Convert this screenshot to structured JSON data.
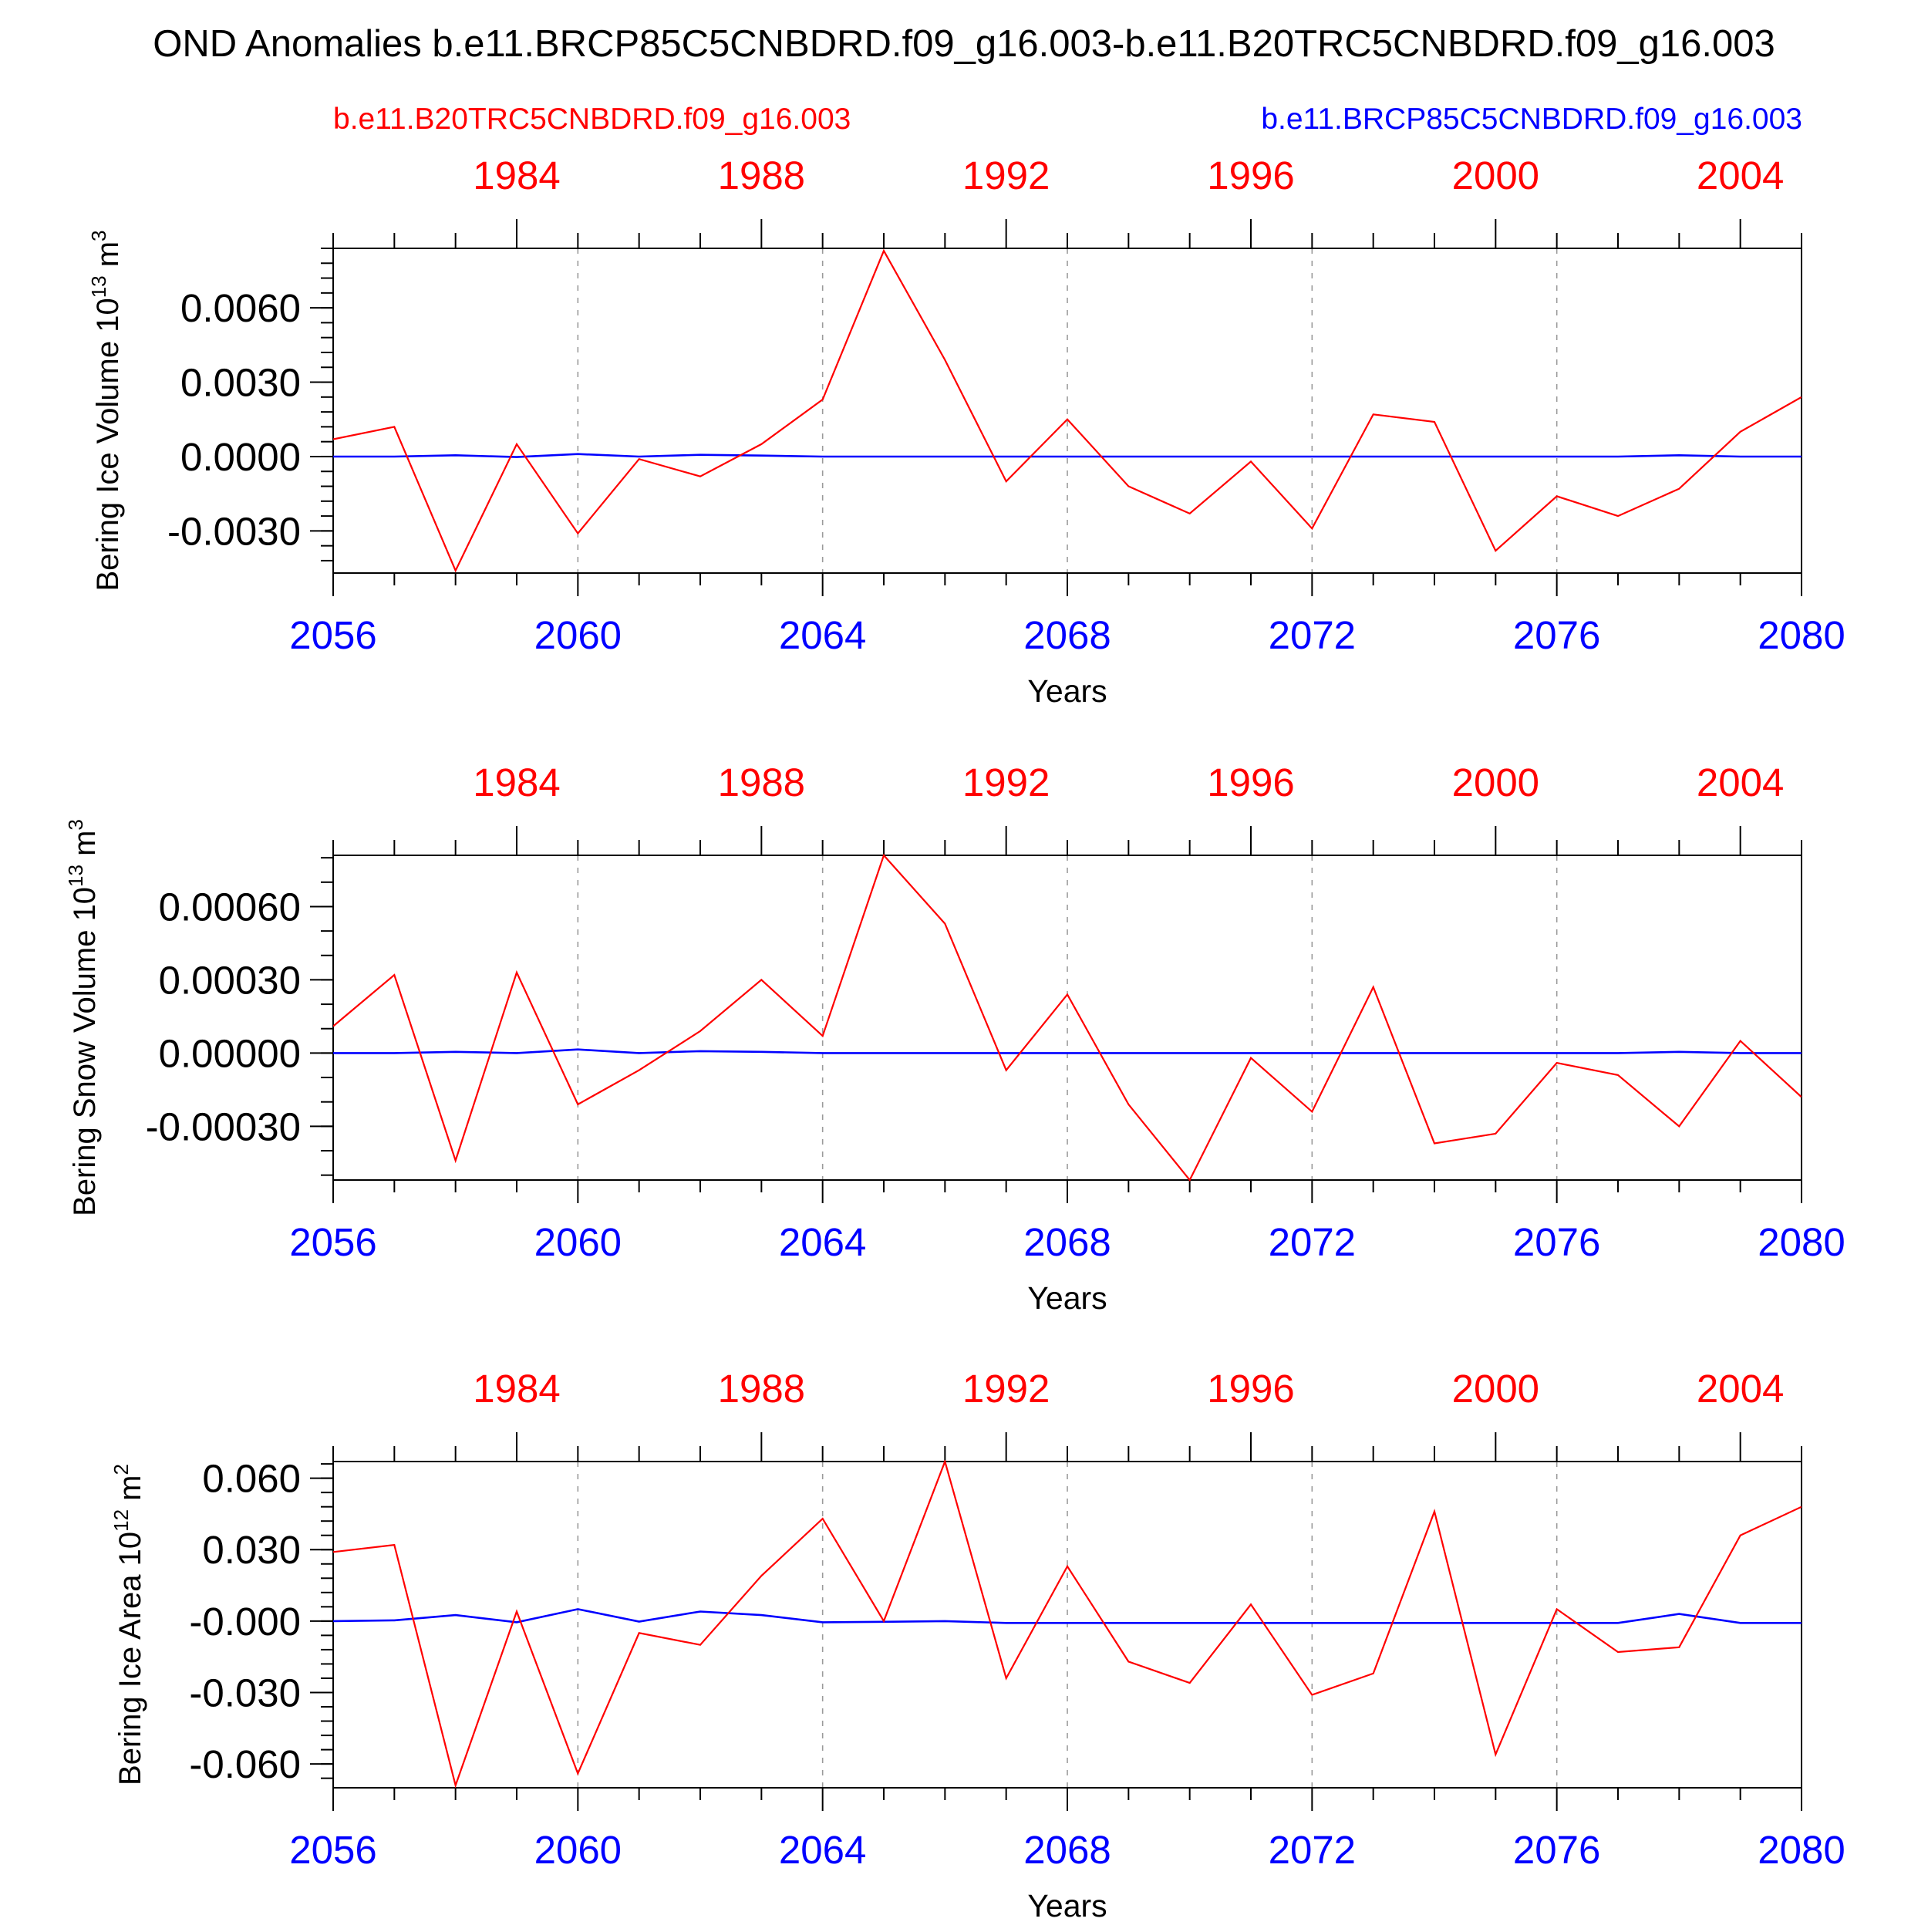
{
  "title": "OND Anomalies b.e11.BRCP85C5CNBDRD.f09_g16.003-b.e11.B20TRC5CNBDRD.f09_g16.003",
  "legend": {
    "red_label": "b.e11.B20TRC5CNBDRD.f09_g16.003",
    "blue_label": "b.e11.BRCP85C5CNBDRD.f09_g16.003"
  },
  "colors": {
    "red": "#ff0000",
    "blue": "#0000ff",
    "axis": "#000000",
    "grid": "#9a9a9a"
  },
  "chart_data": [
    {
      "type": "line",
      "ylabel": "Bering Ice Volume 10",
      "ylabel_exp": "13",
      "ylabel_unit": " m",
      "ylabel_unit_exp": "3",
      "xlabel": "Years",
      "xlim": [
        2056,
        2080
      ],
      "ylim": [
        -0.0047,
        0.0084
      ],
      "yticks": [
        -0.003,
        0.0,
        0.003,
        0.006
      ],
      "ytick_labels": [
        "-0.0030",
        "0.0000",
        "0.0030",
        "0.0060"
      ],
      "yminor_step": 0.0006,
      "top_xlim": [
        1981,
        2005
      ],
      "top_ticks": [
        1984,
        1988,
        1992,
        1996,
        2000,
        2004
      ],
      "bottom_ticks": [
        2056,
        2060,
        2064,
        2068,
        2072,
        2076,
        2080
      ],
      "grid_years": [
        2060,
        2064,
        2068,
        2072,
        2076
      ],
      "x": [
        2056,
        2057,
        2058,
        2059,
        2060,
        2061,
        2062,
        2063,
        2064,
        2065,
        2066,
        2067,
        2068,
        2069,
        2070,
        2071,
        2072,
        2073,
        2074,
        2075,
        2076,
        2077,
        2078,
        2079,
        2080
      ],
      "series": [
        {
          "name": "b.e11.B20TRC5CNBDRD.f09_g16.003",
          "color": "red",
          "values": [
            0.0007,
            0.0012,
            -0.0046,
            0.0005,
            -0.0031,
            -0.0001,
            -0.0008,
            0.0005,
            0.0023,
            0.0083,
            0.0039,
            -0.001,
            0.0015,
            -0.0012,
            -0.0023,
            -0.0002,
            -0.0029,
            0.0017,
            0.0014,
            -0.0038,
            -0.0016,
            -0.0024,
            -0.0013,
            0.001,
            0.0024
          ]
        },
        {
          "name": "b.e11.BRCP85C5CNBDRD.f09_g16.003",
          "color": "blue",
          "values": [
            0.0,
            0.0,
            5e-05,
            -2e-05,
            0.0001,
            0.0,
            7e-05,
            4e-05,
            0.0,
            0.0,
            0.0,
            0.0,
            0.0,
            0.0,
            0.0,
            0.0,
            0.0,
            0.0,
            0.0,
            0.0,
            0.0,
            0.0,
            5e-05,
            0.0,
            0.0
          ]
        }
      ]
    },
    {
      "type": "line",
      "ylabel": "Bering Snow Volume 10",
      "ylabel_exp": "13",
      "ylabel_unit": " m",
      "ylabel_unit_exp": "3",
      "xlabel": "Years",
      "xlim": [
        2056,
        2080
      ],
      "ylim": [
        -0.00052,
        0.00081
      ],
      "yticks": [
        -0.0003,
        0.0,
        0.0003,
        0.0006
      ],
      "ytick_labels": [
        "-0.00030",
        "0.00000",
        "0.00030",
        "0.00060"
      ],
      "yminor_step": 0.0001,
      "top_xlim": [
        1981,
        2005
      ],
      "top_ticks": [
        1984,
        1988,
        1992,
        1996,
        2000,
        2004
      ],
      "bottom_ticks": [
        2056,
        2060,
        2064,
        2068,
        2072,
        2076,
        2080
      ],
      "grid_years": [
        2060,
        2064,
        2068,
        2072,
        2076
      ],
      "x": [
        2056,
        2057,
        2058,
        2059,
        2060,
        2061,
        2062,
        2063,
        2064,
        2065,
        2066,
        2067,
        2068,
        2069,
        2070,
        2071,
        2072,
        2073,
        2074,
        2075,
        2076,
        2077,
        2078,
        2079,
        2080
      ],
      "series": [
        {
          "name": "b.e11.B20TRC5CNBDRD.f09_g16.003",
          "color": "red",
          "values": [
            0.00011,
            0.00032,
            -0.00044,
            0.00033,
            -0.00021,
            -7e-05,
            9e-05,
            0.0003,
            7e-05,
            0.00081,
            0.00053,
            -7e-05,
            0.00024,
            -0.00021,
            -0.00052,
            -2e-05,
            -0.00024,
            0.00027,
            -0.00037,
            -0.00033,
            -4e-05,
            -9e-05,
            -0.0003,
            5e-05,
            -0.00018
          ]
        },
        {
          "name": "b.e11.BRCP85C5CNBDRD.f09_g16.003",
          "color": "blue",
          "values": [
            0.0,
            0.0,
            5e-06,
            0.0,
            1.5e-05,
            0.0,
            8e-06,
            5e-06,
            0.0,
            0.0,
            0.0,
            0.0,
            0.0,
            0.0,
            0.0,
            0.0,
            0.0,
            0.0,
            0.0,
            0.0,
            0.0,
            0.0,
            5e-06,
            0.0,
            0.0
          ]
        }
      ]
    },
    {
      "type": "line",
      "ylabel": "Bering Ice Area 10",
      "ylabel_exp": "12",
      "ylabel_unit": " m",
      "ylabel_unit_exp": "2",
      "xlabel": "Years",
      "xlim": [
        2056,
        2080
      ],
      "ylim": [
        -0.07,
        0.067
      ],
      "yticks": [
        -0.06,
        -0.03,
        0.0,
        0.03,
        0.06
      ],
      "ytick_labels": [
        "-0.060",
        "-0.030",
        "-0.000",
        "0.030",
        "0.060"
      ],
      "yminor_step": 0.006,
      "top_xlim": [
        1981,
        2005
      ],
      "top_ticks": [
        1984,
        1988,
        1992,
        1996,
        2000,
        2004
      ],
      "bottom_ticks": [
        2056,
        2060,
        2064,
        2068,
        2072,
        2076,
        2080
      ],
      "grid_years": [
        2060,
        2064,
        2068,
        2072,
        2076
      ],
      "x": [
        2056,
        2057,
        2058,
        2059,
        2060,
        2061,
        2062,
        2063,
        2064,
        2065,
        2066,
        2067,
        2068,
        2069,
        2070,
        2071,
        2072,
        2073,
        2074,
        2075,
        2076,
        2077,
        2078,
        2079,
        2080
      ],
      "series": [
        {
          "name": "b.e11.B20TRC5CNBDRD.f09_g16.003",
          "color": "red",
          "values": [
            0.029,
            0.032,
            -0.069,
            0.004,
            -0.064,
            -0.005,
            -0.01,
            0.019,
            0.043,
            0.0,
            0.067,
            -0.024,
            0.023,
            -0.017,
            -0.026,
            0.007,
            -0.031,
            -0.022,
            0.046,
            -0.056,
            0.005,
            -0.013,
            -0.011,
            0.036,
            0.048
          ]
        },
        {
          "name": "b.e11.BRCP85C5CNBDRD.f09_g16.003",
          "color": "blue",
          "values": [
            0.0,
            0.0003,
            0.0025,
            -0.0005,
            0.005,
            -0.0002,
            0.004,
            0.0025,
            -0.0005,
            -0.0003,
            0.0,
            -0.0008,
            -0.0008,
            -0.0008,
            -0.0008,
            -0.0008,
            -0.0008,
            -0.0008,
            -0.0008,
            -0.0008,
            -0.0008,
            -0.0008,
            0.003,
            -0.0008,
            -0.0008
          ]
        }
      ]
    }
  ]
}
